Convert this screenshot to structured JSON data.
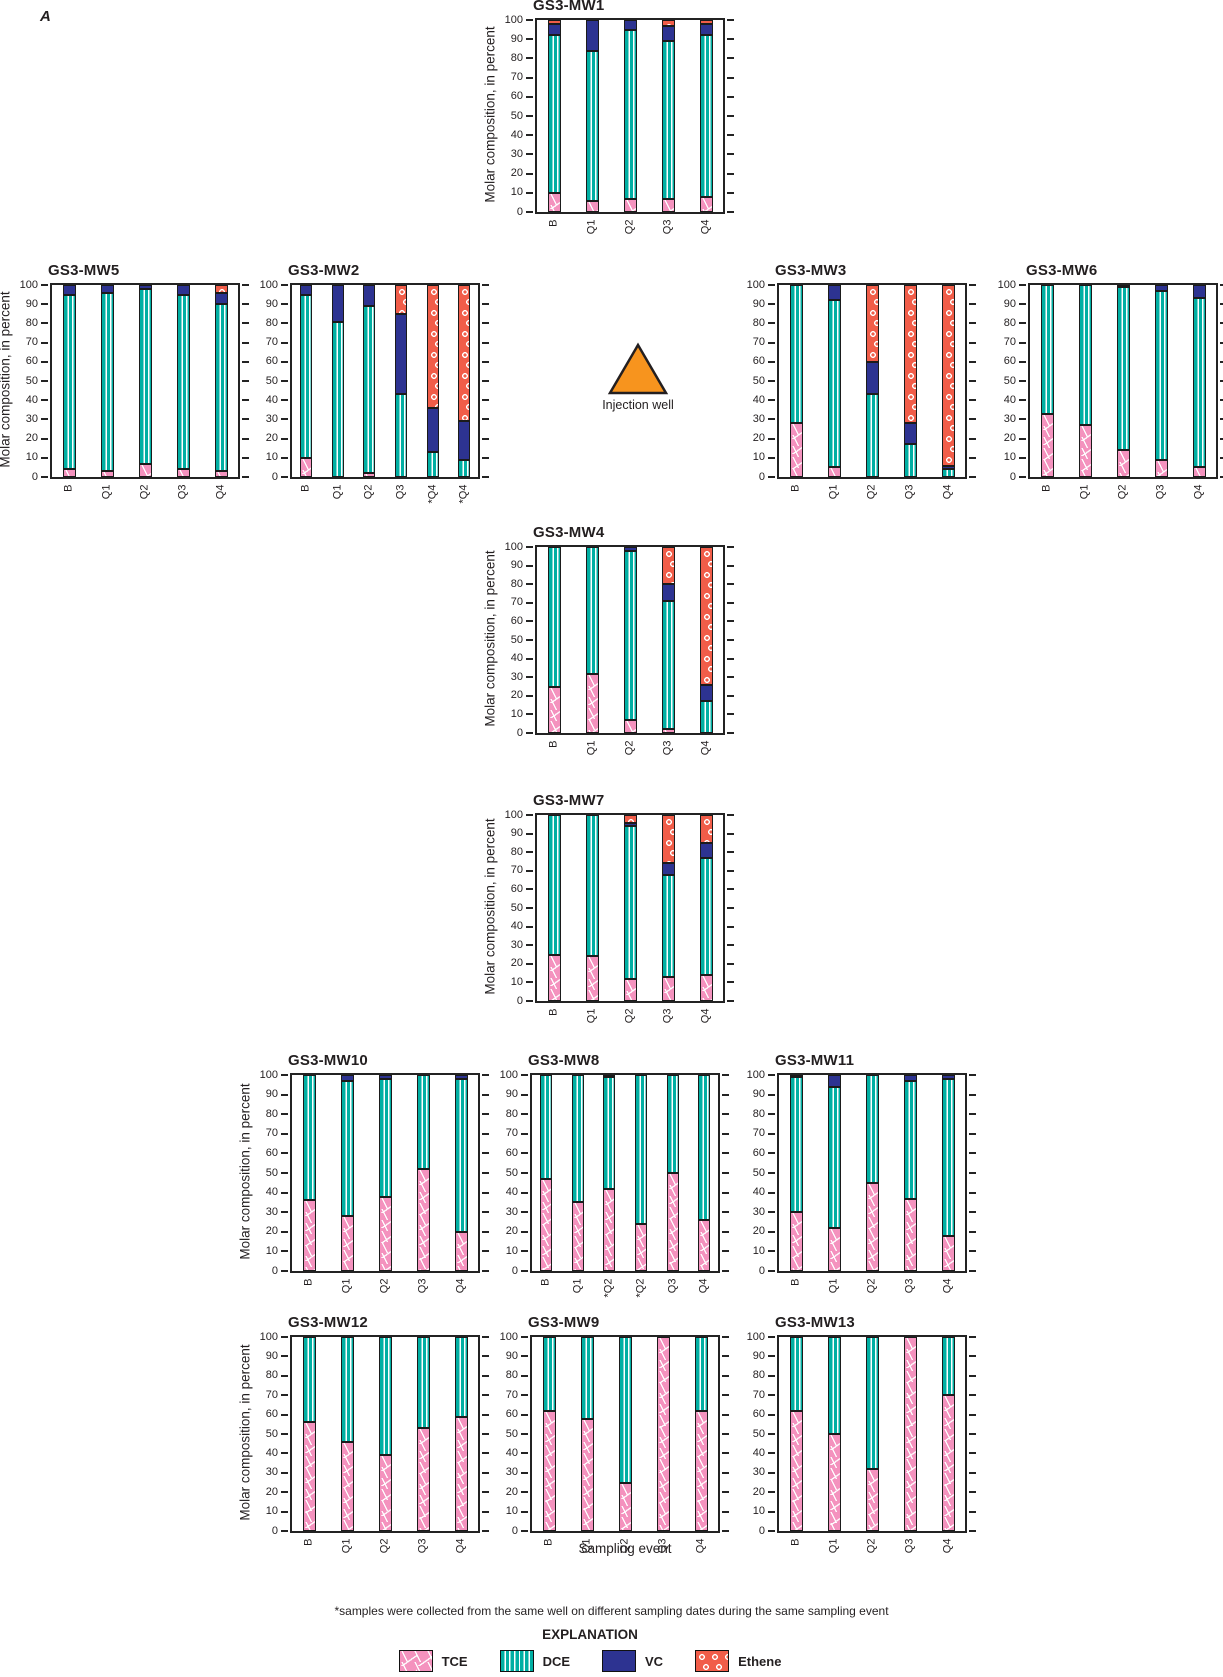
{
  "figure_label": "A",
  "injection_well": {
    "label": "Injection well"
  },
  "axis": {
    "ylabel": "Molar composition, in percent",
    "xlabel": "Sampling event",
    "ymin": 0,
    "ymax": 100,
    "ystep": 10
  },
  "footnote": "*samples were collected from the same well on different sampling dates during the same sampling event",
  "explanation": {
    "title": "EXPLANATION",
    "entries": [
      "TCE",
      "DCE",
      "VC",
      "Ethene"
    ]
  },
  "colors": {
    "TCE": "#F492BE",
    "DCE": "#00AFA3",
    "VC": "#2D3391",
    "Ethene": "#F15D49",
    "injection_well": "#F7941E",
    "axis": "#232323"
  },
  "chart_data": [
    {
      "type": "bar",
      "stacked": true,
      "title": "GS3-MW1",
      "ylim": [
        0,
        100
      ],
      "categories": [
        "B",
        "Q1",
        "Q2",
        "Q3",
        "Q4"
      ],
      "series": [
        {
          "name": "TCE",
          "values": [
            10,
            6,
            7,
            7,
            8
          ]
        },
        {
          "name": "DCE",
          "values": [
            82,
            78,
            88,
            82,
            84
          ]
        },
        {
          "name": "VC",
          "values": [
            6,
            16,
            5,
            8,
            6
          ]
        },
        {
          "name": "Ethene",
          "values": [
            2,
            0,
            0,
            3,
            2
          ]
        }
      ]
    },
    {
      "type": "bar",
      "stacked": true,
      "title": "GS3-MW5",
      "ylim": [
        0,
        100
      ],
      "categories": [
        "B",
        "Q1",
        "Q2",
        "Q3",
        "Q4"
      ],
      "series": [
        {
          "name": "TCE",
          "values": [
            4,
            3,
            7,
            4,
            3
          ]
        },
        {
          "name": "DCE",
          "values": [
            91,
            93,
            91,
            91,
            87
          ]
        },
        {
          "name": "VC",
          "values": [
            5,
            4,
            2,
            5,
            6
          ]
        },
        {
          "name": "Ethene",
          "values": [
            0,
            0,
            0,
            0,
            4
          ]
        }
      ]
    },
    {
      "type": "bar",
      "stacked": true,
      "title": "GS3-MW2",
      "ylim": [
        0,
        100
      ],
      "categories": [
        "B",
        "Q1",
        "Q2",
        "Q3",
        "*Q4",
        "*Q4"
      ],
      "series": [
        {
          "name": "TCE",
          "values": [
            10,
            0,
            2,
            0,
            0,
            0
          ]
        },
        {
          "name": "DCE",
          "values": [
            85,
            81,
            87,
            43,
            13,
            9
          ]
        },
        {
          "name": "VC",
          "values": [
            5,
            19,
            11,
            42,
            23,
            20
          ]
        },
        {
          "name": "Ethene",
          "values": [
            0,
            0,
            0,
            15,
            64,
            71
          ]
        }
      ]
    },
    {
      "type": "bar",
      "stacked": true,
      "title": "GS3-MW3",
      "ylim": [
        0,
        100
      ],
      "categories": [
        "B",
        "Q1",
        "Q2",
        "Q3",
        "Q4"
      ],
      "series": [
        {
          "name": "TCE",
          "values": [
            28,
            5,
            0,
            0,
            0
          ]
        },
        {
          "name": "DCE",
          "values": [
            72,
            87,
            43,
            17,
            4
          ]
        },
        {
          "name": "VC",
          "values": [
            0,
            8,
            17,
            11,
            2
          ]
        },
        {
          "name": "Ethene",
          "values": [
            0,
            0,
            40,
            72,
            94
          ]
        }
      ]
    },
    {
      "type": "bar",
      "stacked": true,
      "title": "GS3-MW6",
      "ylim": [
        0,
        100
      ],
      "categories": [
        "B",
        "Q1",
        "Q2",
        "Q3",
        "Q4"
      ],
      "series": [
        {
          "name": "TCE",
          "values": [
            33,
            27,
            14,
            9,
            5
          ]
        },
        {
          "name": "DCE",
          "values": [
            67,
            73,
            85,
            88,
            88
          ]
        },
        {
          "name": "VC",
          "values": [
            0,
            0,
            1,
            3,
            7
          ]
        },
        {
          "name": "Ethene",
          "values": [
            0,
            0,
            0,
            0,
            0
          ]
        }
      ]
    },
    {
      "type": "bar",
      "stacked": true,
      "title": "GS3-MW4",
      "ylim": [
        0,
        100
      ],
      "categories": [
        "B",
        "Q1",
        "Q2",
        "Q3",
        "Q4"
      ],
      "series": [
        {
          "name": "TCE",
          "values": [
            25,
            32,
            7,
            2,
            0
          ]
        },
        {
          "name": "DCE",
          "values": [
            75,
            68,
            91,
            69,
            17
          ]
        },
        {
          "name": "VC",
          "values": [
            0,
            0,
            2,
            9,
            9
          ]
        },
        {
          "name": "Ethene",
          "values": [
            0,
            0,
            0,
            20,
            74
          ]
        }
      ]
    },
    {
      "type": "bar",
      "stacked": true,
      "title": "GS3-MW7",
      "ylim": [
        0,
        100
      ],
      "categories": [
        "B",
        "Q1",
        "Q2",
        "Q3",
        "Q4"
      ],
      "series": [
        {
          "name": "TCE",
          "values": [
            25,
            24,
            12,
            13,
            14
          ]
        },
        {
          "name": "DCE",
          "values": [
            75,
            76,
            82,
            55,
            63
          ]
        },
        {
          "name": "VC",
          "values": [
            0,
            0,
            2,
            6,
            8
          ]
        },
        {
          "name": "Ethene",
          "values": [
            0,
            0,
            4,
            26,
            15
          ]
        }
      ]
    },
    {
      "type": "bar",
      "stacked": true,
      "title": "GS3-MW10",
      "ylim": [
        0,
        100
      ],
      "categories": [
        "B",
        "Q1",
        "Q2",
        "Q3",
        "Q4"
      ],
      "series": [
        {
          "name": "TCE",
          "values": [
            36,
            28,
            38,
            52,
            20
          ]
        },
        {
          "name": "DCE",
          "values": [
            64,
            69,
            60,
            48,
            78
          ]
        },
        {
          "name": "VC",
          "values": [
            0,
            3,
            2,
            0,
            2
          ]
        },
        {
          "name": "Ethene",
          "values": [
            0,
            0,
            0,
            0,
            0
          ]
        }
      ]
    },
    {
      "type": "bar",
      "stacked": true,
      "title": "GS3-MW8",
      "ylim": [
        0,
        100
      ],
      "categories": [
        "B",
        "Q1",
        "*Q2",
        "*Q2",
        "Q3",
        "Q4"
      ],
      "series": [
        {
          "name": "TCE",
          "values": [
            47,
            35,
            42,
            24,
            50,
            26
          ]
        },
        {
          "name": "DCE",
          "values": [
            53,
            65,
            57,
            76,
            50,
            74
          ]
        },
        {
          "name": "VC",
          "values": [
            0,
            0,
            1,
            0,
            0,
            0
          ]
        },
        {
          "name": "Ethene",
          "values": [
            0,
            0,
            0,
            0,
            0,
            0
          ]
        }
      ]
    },
    {
      "type": "bar",
      "stacked": true,
      "title": "GS3-MW11",
      "ylim": [
        0,
        100
      ],
      "categories": [
        "B",
        "Q1",
        "Q2",
        "Q3",
        "Q4"
      ],
      "series": [
        {
          "name": "TCE",
          "values": [
            30,
            22,
            45,
            37,
            18
          ]
        },
        {
          "name": "DCE",
          "values": [
            69,
            72,
            55,
            60,
            80
          ]
        },
        {
          "name": "VC",
          "values": [
            1,
            6,
            0,
            3,
            2
          ]
        },
        {
          "name": "Ethene",
          "values": [
            0,
            0,
            0,
            0,
            0
          ]
        }
      ]
    },
    {
      "type": "bar",
      "stacked": true,
      "title": "GS3-MW12",
      "ylim": [
        0,
        100
      ],
      "categories": [
        "B",
        "Q1",
        "Q2",
        "Q3",
        "Q4"
      ],
      "series": [
        {
          "name": "TCE",
          "values": [
            56,
            46,
            39,
            53,
            59
          ]
        },
        {
          "name": "DCE",
          "values": [
            44,
            54,
            61,
            47,
            41
          ]
        },
        {
          "name": "VC",
          "values": [
            0,
            0,
            0,
            0,
            0
          ]
        },
        {
          "name": "Ethene",
          "values": [
            0,
            0,
            0,
            0,
            0
          ]
        }
      ]
    },
    {
      "type": "bar",
      "stacked": true,
      "title": "GS3-MW9",
      "ylim": [
        0,
        100
      ],
      "categories": [
        "B",
        "Q1",
        "Q2",
        "Q3",
        "Q4"
      ],
      "series": [
        {
          "name": "TCE",
          "values": [
            62,
            58,
            25,
            100,
            62
          ]
        },
        {
          "name": "DCE",
          "values": [
            38,
            42,
            75,
            0,
            38
          ]
        },
        {
          "name": "VC",
          "values": [
            0,
            0,
            0,
            0,
            0
          ]
        },
        {
          "name": "Ethene",
          "values": [
            0,
            0,
            0,
            0,
            0
          ]
        }
      ]
    },
    {
      "type": "bar",
      "stacked": true,
      "title": "GS3-MW13",
      "ylim": [
        0,
        100
      ],
      "categories": [
        "B",
        "Q1",
        "Q2",
        "Q3",
        "Q4"
      ],
      "series": [
        {
          "name": "TCE",
          "values": [
            62,
            50,
            32,
            100,
            70
          ]
        },
        {
          "name": "DCE",
          "values": [
            38,
            50,
            68,
            0,
            30
          ]
        },
        {
          "name": "VC",
          "values": [
            0,
            0,
            0,
            0,
            0
          ]
        },
        {
          "name": "Ethene",
          "values": [
            0,
            0,
            0,
            0,
            0
          ]
        }
      ]
    }
  ]
}
